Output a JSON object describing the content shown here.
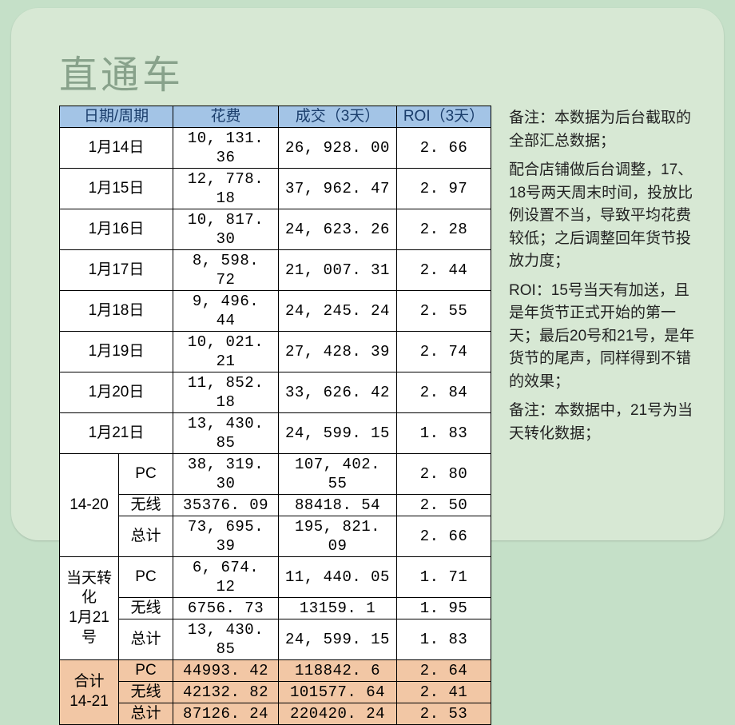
{
  "title": "直通车",
  "table": {
    "headers": {
      "date": "日期/周期",
      "cost": "花费",
      "deal": "成交（3天）",
      "roi": "ROI（3天）"
    },
    "daily": [
      {
        "date": "1月14日",
        "cost": "10, 131. 36",
        "deal": "26, 928. 00",
        "roi": "2. 66"
      },
      {
        "date": "1月15日",
        "cost": "12, 778. 18",
        "deal": "37, 962. 47",
        "roi": "2. 97"
      },
      {
        "date": "1月16日",
        "cost": "10, 817. 30",
        "deal": "24, 623. 26",
        "roi": "2. 28"
      },
      {
        "date": "1月17日",
        "cost": "8, 598. 72",
        "deal": "21, 007. 31",
        "roi": "2. 44"
      },
      {
        "date": "1月18日",
        "cost": "9, 496. 44",
        "deal": "24, 245. 24",
        "roi": "2. 55"
      },
      {
        "date": "1月19日",
        "cost": "10, 021. 21",
        "deal": "27, 428. 39",
        "roi": "2. 74"
      },
      {
        "date": "1月20日",
        "cost": "11, 852. 18",
        "deal": "33, 626. 42",
        "roi": "2. 84"
      },
      {
        "date": "1月21日",
        "cost": "13, 430. 85",
        "deal": "24, 599. 15",
        "roi": "1. 83"
      }
    ],
    "groups": [
      {
        "label": "14-20",
        "rows": [
          {
            "sub": "PC",
            "cost": "38, 319. 30",
            "deal": "107, 402. 55",
            "roi": "2. 80"
          },
          {
            "sub": "无线",
            "cost": "35376. 09",
            "deal": "88418. 54",
            "roi": "2. 50"
          },
          {
            "sub": "总计",
            "cost": "73, 695. 39",
            "deal": "195, 821. 09",
            "roi": "2. 66"
          }
        ],
        "highlight": false
      },
      {
        "label": "当天转化\n1月21号",
        "rows": [
          {
            "sub": "PC",
            "cost": "6, 674. 12",
            "deal": "11, 440. 05",
            "roi": "1. 71"
          },
          {
            "sub": "无线",
            "cost": "6756. 73",
            "deal": "13159. 1",
            "roi": "1. 95"
          },
          {
            "sub": "总计",
            "cost": "13, 430. 85",
            "deal": "24, 599. 15",
            "roi": "1. 83"
          }
        ],
        "highlight": false
      },
      {
        "label": "合计\n14-21",
        "rows": [
          {
            "sub": "PC",
            "cost": "44993. 42",
            "deal": "118842. 6",
            "roi": "2. 64"
          },
          {
            "sub": "无线",
            "cost": "42132. 82",
            "deal": "101577. 64",
            "roi": "2. 41"
          },
          {
            "sub": "总计",
            "cost": "87126. 24",
            "deal": "220420. 24",
            "roi": "2. 53"
          }
        ],
        "highlight": true
      }
    ]
  },
  "notes": {
    "p1": "备注：本数据为后台截取的全部汇总数据；",
    "p2": "配合店铺做后台调整，17、18号两天周末时间，投放比例设置不当，导致平均花费较低；之后调整回年货节投放力度；",
    "p3": "ROI：15号当天有加送，且是年货节正式开始的第一天；最后20号和21号，是年货节的尾声，同样得到不错的效果；",
    "p4": "备注：本数据中，21号为当天转化数据；"
  },
  "colors": {
    "page_bg": "#c5e0c8",
    "card_bg": "#d7e8d4",
    "title_color": "#88a28b",
    "header_bg": "#a3c4e6",
    "header_text": "#1a3d6b",
    "highlight_bg": "#f2c7a5",
    "cell_bg": "#ffffff",
    "border": "#000000"
  }
}
